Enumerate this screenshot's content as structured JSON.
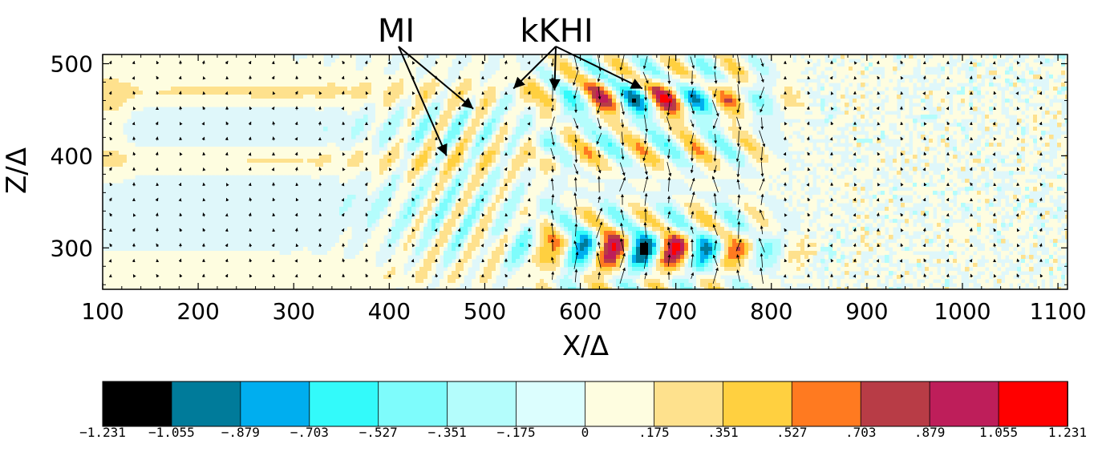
{
  "chart_data": {
    "type": "heatmap",
    "title": "",
    "xlabel": "X/Δ",
    "ylabel": "Z/Δ",
    "xlim": [
      100,
      1110
    ],
    "ylim": [
      255,
      510
    ],
    "x_ticks": [
      100,
      200,
      300,
      400,
      500,
      600,
      700,
      800,
      900,
      1000,
      1100
    ],
    "y_ticks": [
      300,
      400,
      500
    ],
    "x_tick_labels": [
      "100",
      "200",
      "300",
      "400",
      "500",
      "600",
      "700",
      "800",
      "900",
      "1000",
      "1100"
    ],
    "y_tick_labels": [
      "300",
      "400",
      "500"
    ],
    "overlay": "velocity vector arrows",
    "annotations": [
      {
        "text": "MI",
        "targets": [
          [
            460,
            400
          ],
          [
            488,
            451
          ]
        ]
      },
      {
        "text": "kKHI",
        "targets": [
          [
            530,
            473
          ],
          [
            573,
            471
          ],
          [
            665,
            473
          ]
        ]
      }
    ],
    "colorbar": {
      "colors": [
        "#000000",
        "#007b9a",
        "#00aeef",
        "#33fafa",
        "#7efcfc",
        "#b4fdfc",
        "#dcfefe",
        "#fefde0",
        "#fee18d",
        "#ffd040",
        "#ff7a20",
        "#b83c46",
        "#be1e5a",
        "#ff0000"
      ],
      "tick_labels": [
        "−1.231",
        "−1.055",
        "−.879",
        "−.703",
        "−.527",
        "−.351",
        "−.175",
        "0",
        ".175",
        ".351",
        ".527",
        ".703",
        ".879",
        "1.055",
        "1.231"
      ]
    }
  }
}
